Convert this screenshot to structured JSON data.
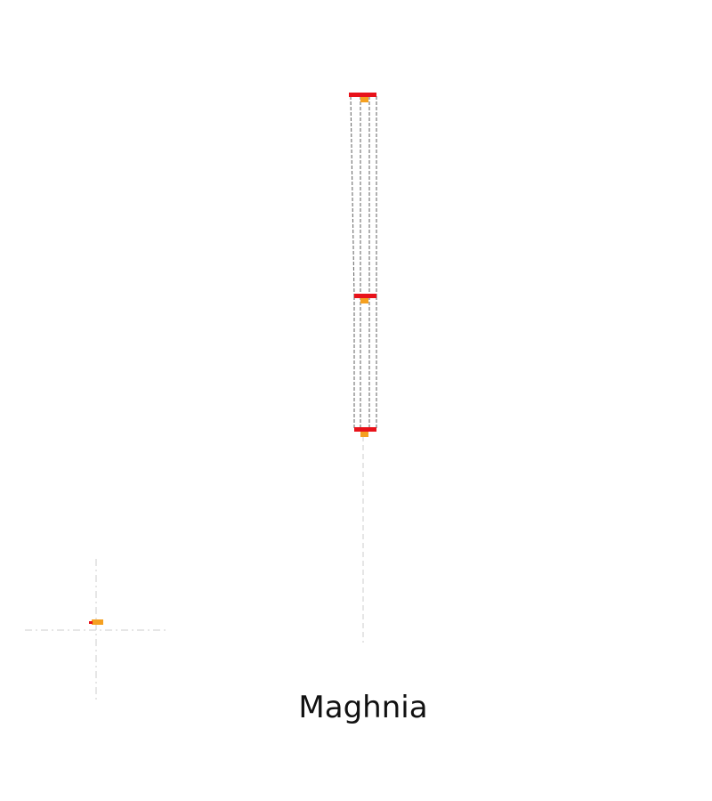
{
  "title": "Maghnia",
  "colors": {
    "outline": "#6e6e6e",
    "guide": "#d6d6d6",
    "bar": "#e8121a",
    "node": "#f5a020",
    "background": "#ffffff",
    "text": "#111111"
  }
}
